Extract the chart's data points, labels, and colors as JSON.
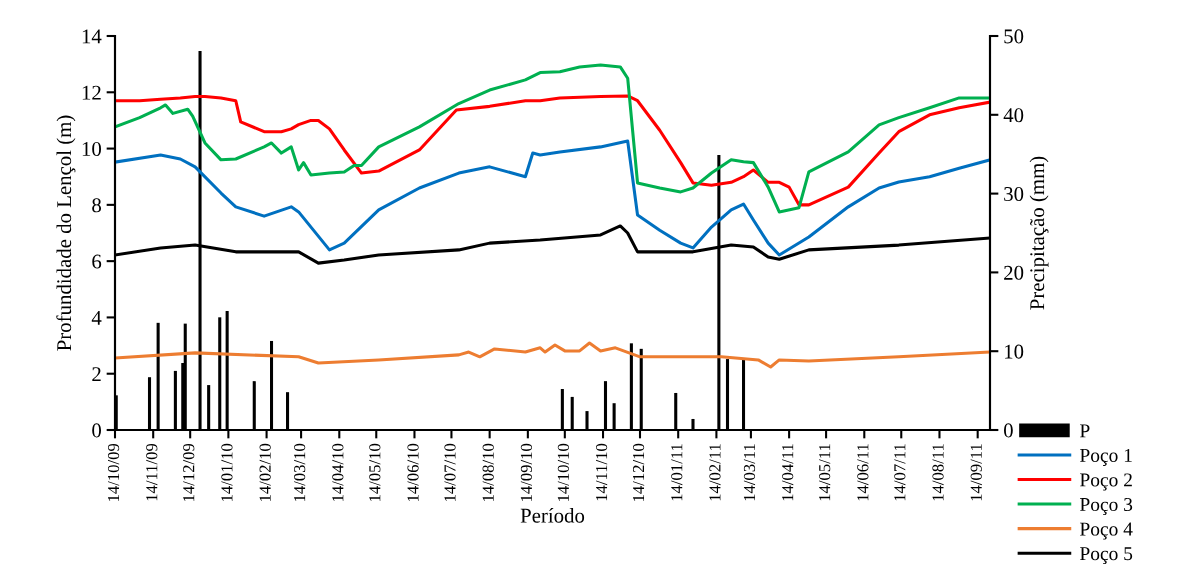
{
  "chart_data": {
    "type": "line",
    "xlabel": "Período",
    "ylabel": "Profundidade do Lençol (m)",
    "y2label": "Precipitação (mm)",
    "xlim": [
      "2009-10-14",
      "2011-09-24"
    ],
    "xticks": [
      {
        "value": "2009-10-14",
        "label": "14/10/09"
      },
      {
        "value": "2009-11-14",
        "label": "14/11/09"
      },
      {
        "value": "2009-12-14",
        "label": "14/12/09"
      },
      {
        "value": "2010-01-14",
        "label": "14/01/10"
      },
      {
        "value": "2010-02-14",
        "label": "14/02/10"
      },
      {
        "value": "2010-03-14",
        "label": "14/03/10"
      },
      {
        "value": "2010-04-14",
        "label": "14/04/10"
      },
      {
        "value": "2010-05-14",
        "label": "14/05/10"
      },
      {
        "value": "2010-06-14",
        "label": "14/06/10"
      },
      {
        "value": "2010-07-14",
        "label": "14/07/10"
      },
      {
        "value": "2010-08-14",
        "label": "14/08/10"
      },
      {
        "value": "2010-09-14",
        "label": "14/09/10"
      },
      {
        "value": "2010-10-14",
        "label": "14/10/10"
      },
      {
        "value": "2010-11-14",
        "label": "14/11/10"
      },
      {
        "value": "2010-12-14",
        "label": "14/12/10"
      },
      {
        "value": "2011-01-14",
        "label": "14/01/11"
      },
      {
        "value": "2011-02-14",
        "label": "14/02/11"
      },
      {
        "value": "2011-03-14",
        "label": "14/03/11"
      },
      {
        "value": "2011-04-14",
        "label": "14/04/11"
      },
      {
        "value": "2011-05-14",
        "label": "14/05/11"
      },
      {
        "value": "2011-06-14",
        "label": "14/06/11"
      },
      {
        "value": "2011-07-14",
        "label": "14/07/11"
      },
      {
        "value": "2011-08-14",
        "label": "14/08/11"
      },
      {
        "value": "2011-09-14",
        "label": "14/09/11"
      }
    ],
    "ylim": [
      0,
      14
    ],
    "yticks": [
      0,
      2,
      4,
      6,
      8,
      10,
      12,
      14
    ],
    "y2lim": [
      0,
      50
    ],
    "y2ticks": [
      0,
      10,
      20,
      30,
      40,
      50
    ],
    "grid": false,
    "legend": "right",
    "marker": "none",
    "line_style": "solid",
    "series": [
      {
        "name": "P",
        "type": "bar",
        "axis": "y2",
        "color": "#000000",
        "x": [
          "2009-10-15",
          "2009-11-11",
          "2009-11-18",
          "2009-12-02",
          "2009-12-08",
          "2009-12-10",
          "2009-12-22",
          "2009-12-29",
          "2010-01-07",
          "2010-01-13",
          "2010-02-04",
          "2010-02-18",
          "2010-03-03",
          "2010-10-12",
          "2010-10-20",
          "2010-11-01",
          "2010-11-16",
          "2010-11-23",
          "2010-12-07",
          "2010-12-15",
          "2011-01-12",
          "2011-01-26",
          "2011-02-16",
          "2011-02-23",
          "2011-03-08"
        ],
        "values": [
          4.4,
          6.7,
          13.6,
          7.5,
          8.5,
          13.5,
          48.1,
          5.7,
          14.3,
          15.1,
          6.2,
          11.3,
          4.8,
          5.2,
          4.2,
          2.4,
          6.2,
          3.4,
          11.0,
          10.3,
          4.7,
          1.4,
          34.9,
          9.0,
          8.9
        ]
      },
      {
        "name": "Poço 1",
        "color": "#0070c0",
        "x": [
          "2009-10-14",
          "2009-11-20",
          "2009-12-06",
          "2009-12-18",
          "2010-01-08",
          "2010-01-20",
          "2010-02-12",
          "2010-03-06",
          "2010-03-12",
          "2010-04-06",
          "2010-04-18",
          "2010-05-16",
          "2010-06-18",
          "2010-07-20",
          "2010-08-14",
          "2010-09-12",
          "2010-09-18",
          "2010-09-24",
          "2010-10-10",
          "2010-11-12",
          "2010-12-04",
          "2010-12-12",
          "2010-12-30",
          "2011-01-16",
          "2011-01-26",
          "2011-02-10",
          "2011-02-26",
          "2011-03-08",
          "2011-03-16",
          "2011-03-28",
          "2011-04-06",
          "2011-04-30",
          "2011-06-01",
          "2011-06-26",
          "2011-07-12",
          "2011-08-06",
          "2011-08-30",
          "2011-09-24"
        ],
        "values": [
          9.52,
          9.77,
          9.63,
          9.35,
          8.42,
          7.93,
          7.6,
          7.93,
          7.75,
          6.4,
          6.64,
          7.82,
          8.6,
          9.13,
          9.35,
          9.0,
          9.84,
          9.77,
          9.88,
          10.06,
          10.27,
          7.64,
          7.1,
          6.64,
          6.47,
          7.21,
          7.82,
          8.03,
          7.46,
          6.64,
          6.22,
          6.86,
          7.93,
          8.6,
          8.81,
          9.0,
          9.3,
          9.6
        ]
      },
      {
        "name": "Poço 2",
        "color": "#ff0000",
        "x": [
          "2009-10-14",
          "2009-11-03",
          "2009-11-20",
          "2009-12-06",
          "2009-12-18",
          "2009-12-26",
          "2010-01-08",
          "2010-01-20",
          "2010-01-24",
          "2010-02-12",
          "2010-02-26",
          "2010-03-06",
          "2010-03-12",
          "2010-03-22",
          "2010-03-28",
          "2010-04-06",
          "2010-04-18",
          "2010-05-02",
          "2010-05-16",
          "2010-06-18",
          "2010-07-18",
          "2010-08-14",
          "2010-09-12",
          "2010-09-24",
          "2010-10-10",
          "2010-11-12",
          "2010-12-04",
          "2010-12-12",
          "2010-12-30",
          "2011-01-16",
          "2011-01-26",
          "2011-02-10",
          "2011-02-26",
          "2011-03-08",
          "2011-03-16",
          "2011-03-28",
          "2011-04-06",
          "2011-04-14",
          "2011-04-22",
          "2011-04-30",
          "2011-06-01",
          "2011-06-26",
          "2011-07-12",
          "2011-08-06",
          "2011-08-30",
          "2011-09-24"
        ],
        "values": [
          11.7,
          11.7,
          11.75,
          11.8,
          11.85,
          11.85,
          11.8,
          11.7,
          10.95,
          10.6,
          10.6,
          10.7,
          10.85,
          11.0,
          11.0,
          10.7,
          9.95,
          9.13,
          9.2,
          9.95,
          11.37,
          11.5,
          11.7,
          11.7,
          11.8,
          11.85,
          11.87,
          11.7,
          10.65,
          9.5,
          8.78,
          8.7,
          8.8,
          9.0,
          9.24,
          8.8,
          8.8,
          8.63,
          8.0,
          8.0,
          8.63,
          9.84,
          10.6,
          11.2,
          11.45,
          11.65
        ]
      },
      {
        "name": "Poço 3",
        "color": "#00b050",
        "x": [
          "2009-10-14",
          "2009-11-03",
          "2009-11-20",
          "2009-11-24",
          "2009-11-30",
          "2009-12-12",
          "2009-12-16",
          "2009-12-26",
          "2010-01-08",
          "2010-01-20",
          "2010-02-12",
          "2010-02-18",
          "2010-02-26",
          "2010-03-06",
          "2010-03-12",
          "2010-03-16",
          "2010-03-22",
          "2010-04-06",
          "2010-04-18",
          "2010-04-26",
          "2010-05-02",
          "2010-05-16",
          "2010-06-18",
          "2010-07-20",
          "2010-08-14",
          "2010-09-12",
          "2010-09-24",
          "2010-10-10",
          "2010-10-26",
          "2010-11-12",
          "2010-11-28",
          "2010-12-04",
          "2010-12-12",
          "2010-12-30",
          "2011-01-16",
          "2011-01-26",
          "2011-02-10",
          "2011-02-26",
          "2011-03-08",
          "2011-03-16",
          "2011-03-28",
          "2011-04-06",
          "2011-04-22",
          "2011-04-30",
          "2011-06-01",
          "2011-06-26",
          "2011-07-12",
          "2011-08-06",
          "2011-08-30",
          "2011-09-24"
        ],
        "values": [
          10.77,
          11.1,
          11.45,
          11.55,
          11.25,
          11.4,
          11.15,
          10.2,
          9.6,
          9.63,
          10.06,
          10.2,
          9.84,
          10.06,
          9.24,
          9.5,
          9.06,
          9.13,
          9.17,
          9.4,
          9.4,
          10.06,
          10.77,
          11.6,
          12.08,
          12.44,
          12.7,
          12.73,
          12.9,
          12.97,
          12.9,
          12.5,
          8.78,
          8.6,
          8.46,
          8.6,
          9.13,
          9.6,
          9.53,
          9.5,
          8.63,
          7.75,
          7.9,
          9.17,
          9.88,
          10.84,
          11.1,
          11.45,
          11.8,
          11.8
        ]
      },
      {
        "name": "Poço 4",
        "color": "#ed7d31",
        "x": [
          "2009-10-14",
          "2009-12-18",
          "2010-03-12",
          "2010-03-28",
          "2010-05-16",
          "2010-07-20",
          "2010-07-28",
          "2010-08-06",
          "2010-08-18",
          "2010-09-12",
          "2010-09-24",
          "2010-09-28",
          "2010-10-06",
          "2010-10-14",
          "2010-10-26",
          "2010-11-03",
          "2010-11-12",
          "2010-11-24",
          "2010-12-14",
          "2011-02-18",
          "2011-03-20",
          "2011-03-30",
          "2011-04-06",
          "2011-04-30",
          "2011-07-12",
          "2011-09-24"
        ],
        "values": [
          2.56,
          2.74,
          2.6,
          2.38,
          2.49,
          2.67,
          2.77,
          2.6,
          2.88,
          2.77,
          2.92,
          2.77,
          3.02,
          2.81,
          2.81,
          3.09,
          2.81,
          2.92,
          2.6,
          2.6,
          2.49,
          2.24,
          2.49,
          2.45,
          2.6,
          2.77
        ]
      },
      {
        "name": "Poço 5",
        "color": "#000000",
        "x": [
          "2009-10-14",
          "2009-11-20",
          "2009-12-18",
          "2010-01-20",
          "2010-03-12",
          "2010-03-28",
          "2010-04-18",
          "2010-05-16",
          "2010-07-20",
          "2010-08-14",
          "2010-09-24",
          "2010-11-12",
          "2010-11-28",
          "2010-12-04",
          "2010-12-12",
          "2011-01-26",
          "2011-02-26",
          "2011-03-16",
          "2011-03-28",
          "2011-04-06",
          "2011-04-30",
          "2011-07-12",
          "2011-09-24"
        ],
        "values": [
          6.22,
          6.47,
          6.57,
          6.33,
          6.33,
          5.93,
          6.04,
          6.22,
          6.4,
          6.64,
          6.75,
          6.93,
          7.25,
          7.0,
          6.33,
          6.33,
          6.57,
          6.5,
          6.15,
          6.07,
          6.4,
          6.57,
          6.82
        ]
      }
    ]
  }
}
